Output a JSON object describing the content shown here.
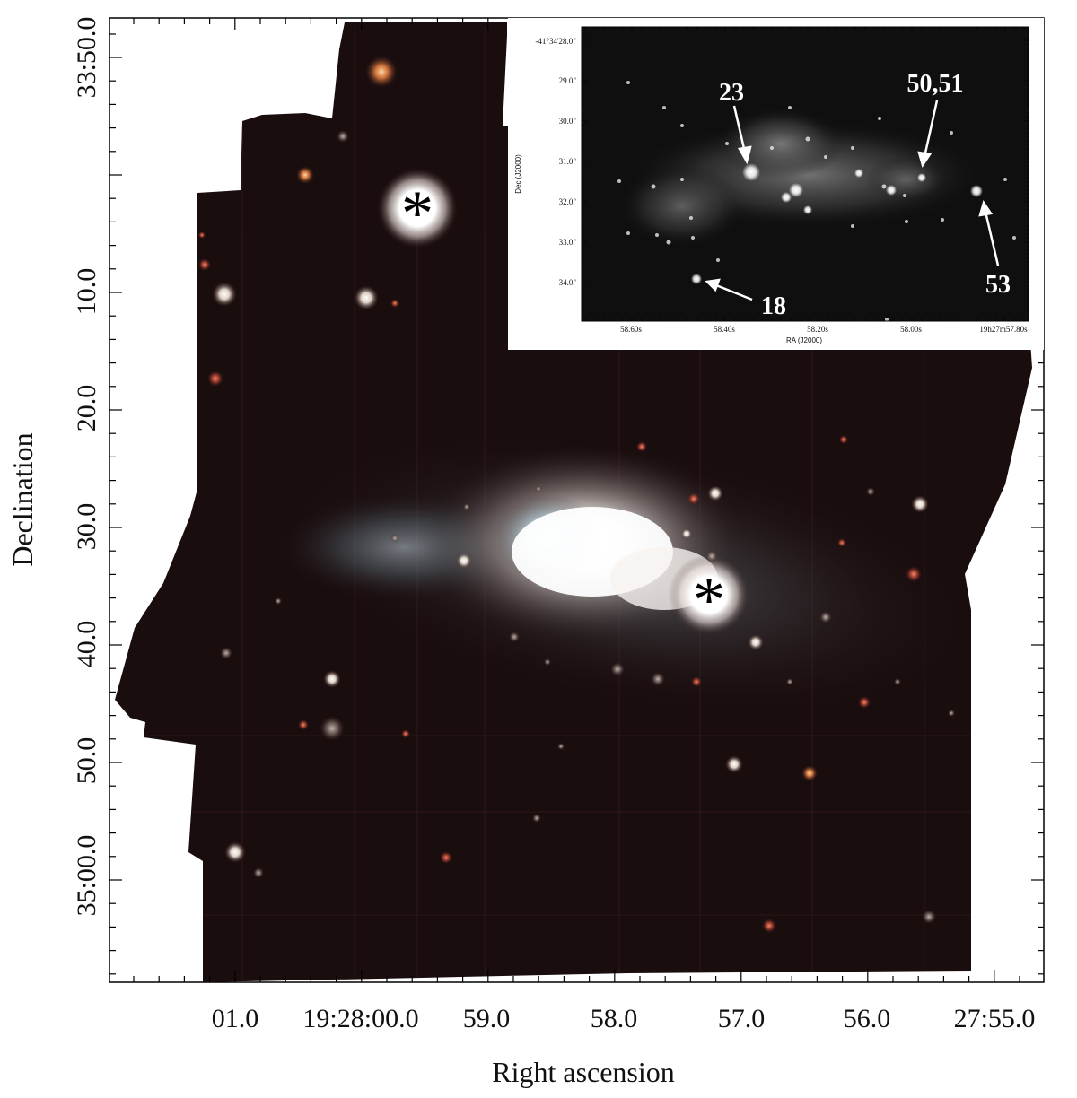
{
  "main_plot": {
    "y_axis_label": "Declination",
    "x_axis_label": "Right ascension",
    "y_ticks": [
      "33:50.0",
      "10.0",
      "20.0",
      "30.0",
      "40.0",
      "50.0",
      "35:00.0"
    ],
    "x_ticks": [
      "01.0",
      "19:28:00.0",
      "59.0",
      "58.0",
      "57.0",
      "56.0",
      "27:55.0"
    ],
    "star_markers": [
      "*",
      "*"
    ]
  },
  "inset": {
    "y_axis_label": "Dec (J2000)",
    "x_axis_label": "RA (J2000)",
    "y_ticks": [
      "-41°34'28.0\"",
      "29.0\"",
      "30.0\"",
      "31.0\"",
      "32.0\"",
      "33.0\"",
      "34.0\""
    ],
    "x_ticks": [
      "58.60s",
      "58.40s",
      "58.20s",
      "58.00s",
      "19h27m57.80s"
    ],
    "annotations": [
      "23",
      "50,51",
      "53",
      "18"
    ]
  },
  "colors": {
    "background": "#ffffff",
    "image_dark": "#1a0d0e",
    "inset_bg": "#0f0f0f"
  }
}
